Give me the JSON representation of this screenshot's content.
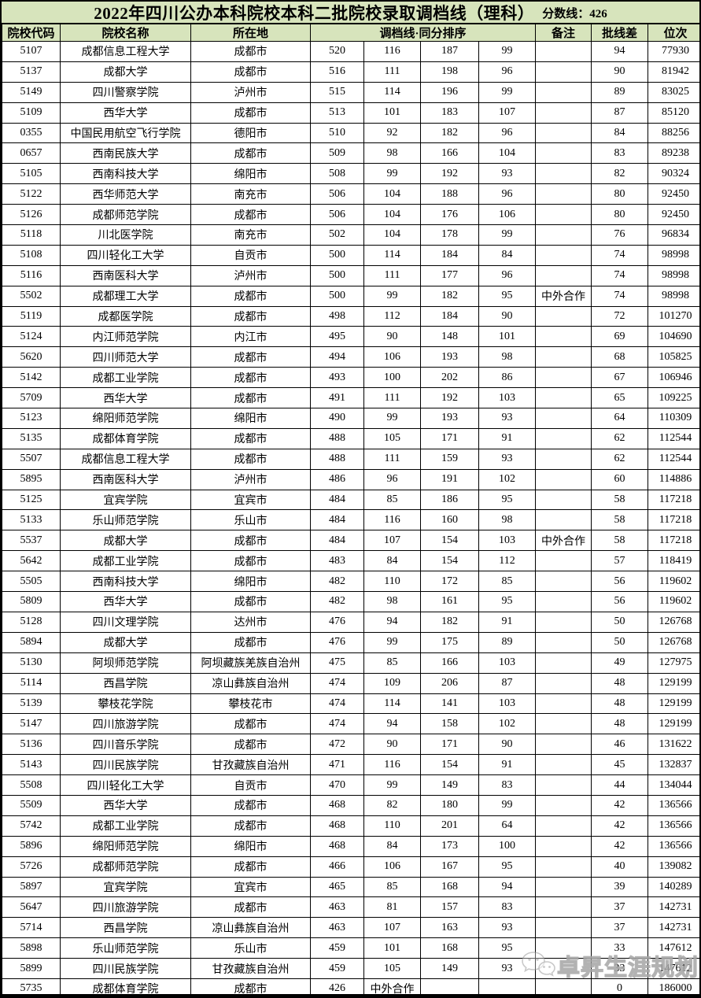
{
  "title": {
    "main": "2022年四川公办本科院校本科二批院校录取调档线（理科）",
    "scoreline": "分数线：426"
  },
  "colors": {
    "header_bg": "#d7e4bc",
    "border": "#000000",
    "row_bg": "#ffffff",
    "watermark_gray": "#a0a0a0"
  },
  "table": {
    "headers": {
      "code": "院校代码",
      "name": "院校名称",
      "city": "所在地",
      "score_group": "调档线·同分排序",
      "remark": "备注",
      "diff": "批线差",
      "rank": "位次"
    },
    "rows": [
      {
        "code": "5107",
        "name": "成都信息工程大学",
        "city": "成都市",
        "c1": "520",
        "c2": "116",
        "c3": "187",
        "c4": "99",
        "remark": "",
        "diff": "94",
        "rank": "77930"
      },
      {
        "code": "5137",
        "name": "成都大学",
        "city": "成都市",
        "c1": "516",
        "c2": "111",
        "c3": "198",
        "c4": "96",
        "remark": "",
        "diff": "90",
        "rank": "81942"
      },
      {
        "code": "5149",
        "name": "四川警察学院",
        "city": "泸州市",
        "c1": "515",
        "c2": "114",
        "c3": "196",
        "c4": "99",
        "remark": "",
        "diff": "89",
        "rank": "83025"
      },
      {
        "code": "5109",
        "name": "西华大学",
        "city": "成都市",
        "c1": "513",
        "c2": "101",
        "c3": "183",
        "c4": "107",
        "remark": "",
        "diff": "87",
        "rank": "85120"
      },
      {
        "code": "0355",
        "name": "中国民用航空飞行学院",
        "city": "德阳市",
        "c1": "510",
        "c2": "92",
        "c3": "182",
        "c4": "96",
        "remark": "",
        "diff": "84",
        "rank": "88256"
      },
      {
        "code": "0657",
        "name": "西南民族大学",
        "city": "成都市",
        "c1": "509",
        "c2": "98",
        "c3": "166",
        "c4": "104",
        "remark": "",
        "diff": "83",
        "rank": "89238"
      },
      {
        "code": "5105",
        "name": "西南科技大学",
        "city": "绵阳市",
        "c1": "508",
        "c2": "99",
        "c3": "192",
        "c4": "93",
        "remark": "",
        "diff": "82",
        "rank": "90324"
      },
      {
        "code": "5122",
        "name": "西华师范大学",
        "city": "南充市",
        "c1": "506",
        "c2": "104",
        "c3": "188",
        "c4": "96",
        "remark": "",
        "diff": "80",
        "rank": "92450"
      },
      {
        "code": "5126",
        "name": "成都师范学院",
        "city": "成都市",
        "c1": "506",
        "c2": "104",
        "c3": "176",
        "c4": "106",
        "remark": "",
        "diff": "80",
        "rank": "92450"
      },
      {
        "code": "5118",
        "name": "川北医学院",
        "city": "南充市",
        "c1": "502",
        "c2": "104",
        "c3": "178",
        "c4": "99",
        "remark": "",
        "diff": "76",
        "rank": "96834"
      },
      {
        "code": "5108",
        "name": "四川轻化工大学",
        "city": "自贡市",
        "c1": "500",
        "c2": "114",
        "c3": "184",
        "c4": "84",
        "remark": "",
        "diff": "74",
        "rank": "98998"
      },
      {
        "code": "5116",
        "name": "西南医科大学",
        "city": "泸州市",
        "c1": "500",
        "c2": "111",
        "c3": "177",
        "c4": "96",
        "remark": "",
        "diff": "74",
        "rank": "98998"
      },
      {
        "code": "5502",
        "name": "成都理工大学",
        "city": "成都市",
        "c1": "500",
        "c2": "99",
        "c3": "182",
        "c4": "95",
        "remark": "中外合作",
        "diff": "74",
        "rank": "98998"
      },
      {
        "code": "5119",
        "name": "成都医学院",
        "city": "成都市",
        "c1": "498",
        "c2": "112",
        "c3": "184",
        "c4": "90",
        "remark": "",
        "diff": "72",
        "rank": "101270"
      },
      {
        "code": "5124",
        "name": "内江师范学院",
        "city": "内江市",
        "c1": "495",
        "c2": "90",
        "c3": "148",
        "c4": "101",
        "remark": "",
        "diff": "69",
        "rank": "104690"
      },
      {
        "code": "5620",
        "name": "四川师范大学",
        "city": "成都市",
        "c1": "494",
        "c2": "106",
        "c3": "193",
        "c4": "98",
        "remark": "",
        "diff": "68",
        "rank": "105825"
      },
      {
        "code": "5142",
        "name": "成都工业学院",
        "city": "成都市",
        "c1": "493",
        "c2": "100",
        "c3": "202",
        "c4": "86",
        "remark": "",
        "diff": "67",
        "rank": "106946"
      },
      {
        "code": "5709",
        "name": "西华大学",
        "city": "成都市",
        "c1": "491",
        "c2": "111",
        "c3": "192",
        "c4": "103",
        "remark": "",
        "diff": "65",
        "rank": "109225"
      },
      {
        "code": "5123",
        "name": "绵阳师范学院",
        "city": "绵阳市",
        "c1": "490",
        "c2": "99",
        "c3": "193",
        "c4": "93",
        "remark": "",
        "diff": "64",
        "rank": "110309"
      },
      {
        "code": "5135",
        "name": "成都体育学院",
        "city": "成都市",
        "c1": "488",
        "c2": "105",
        "c3": "171",
        "c4": "91",
        "remark": "",
        "diff": "62",
        "rank": "112544"
      },
      {
        "code": "5507",
        "name": "成都信息工程大学",
        "city": "成都市",
        "c1": "488",
        "c2": "111",
        "c3": "159",
        "c4": "93",
        "remark": "",
        "diff": "62",
        "rank": "112544"
      },
      {
        "code": "5895",
        "name": "西南医科大学",
        "city": "泸州市",
        "c1": "486",
        "c2": "96",
        "c3": "191",
        "c4": "102",
        "remark": "",
        "diff": "60",
        "rank": "114886"
      },
      {
        "code": "5125",
        "name": "宜宾学院",
        "city": "宜宾市",
        "c1": "484",
        "c2": "85",
        "c3": "186",
        "c4": "95",
        "remark": "",
        "diff": "58",
        "rank": "117218"
      },
      {
        "code": "5133",
        "name": "乐山师范学院",
        "city": "乐山市",
        "c1": "484",
        "c2": "116",
        "c3": "160",
        "c4": "98",
        "remark": "",
        "diff": "58",
        "rank": "117218"
      },
      {
        "code": "5537",
        "name": "成都大学",
        "city": "成都市",
        "c1": "484",
        "c2": "107",
        "c3": "154",
        "c4": "103",
        "remark": "中外合作",
        "diff": "58",
        "rank": "117218"
      },
      {
        "code": "5642",
        "name": "成都工业学院",
        "city": "成都市",
        "c1": "483",
        "c2": "84",
        "c3": "154",
        "c4": "112",
        "remark": "",
        "diff": "57",
        "rank": "118419"
      },
      {
        "code": "5505",
        "name": "西南科技大学",
        "city": "绵阳市",
        "c1": "482",
        "c2": "110",
        "c3": "172",
        "c4": "85",
        "remark": "",
        "diff": "56",
        "rank": "119602"
      },
      {
        "code": "5809",
        "name": "西华大学",
        "city": "成都市",
        "c1": "482",
        "c2": "98",
        "c3": "161",
        "c4": "95",
        "remark": "",
        "diff": "56",
        "rank": "119602"
      },
      {
        "code": "5128",
        "name": "四川文理学院",
        "city": "达州市",
        "c1": "476",
        "c2": "94",
        "c3": "182",
        "c4": "91",
        "remark": "",
        "diff": "50",
        "rank": "126768"
      },
      {
        "code": "5894",
        "name": "成都大学",
        "city": "成都市",
        "c1": "476",
        "c2": "99",
        "c3": "175",
        "c4": "89",
        "remark": "",
        "diff": "50",
        "rank": "126768"
      },
      {
        "code": "5130",
        "name": "阿坝师范学院",
        "city": "阿坝藏族羌族自治州",
        "c1": "475",
        "c2": "85",
        "c3": "166",
        "c4": "103",
        "remark": "",
        "diff": "49",
        "rank": "127975"
      },
      {
        "code": "5114",
        "name": "西昌学院",
        "city": "凉山彝族自治州",
        "c1": "474",
        "c2": "109",
        "c3": "206",
        "c4": "87",
        "remark": "",
        "diff": "48",
        "rank": "129199"
      },
      {
        "code": "5139",
        "name": "攀枝花学院",
        "city": "攀枝花市",
        "c1": "474",
        "c2": "114",
        "c3": "141",
        "c4": "103",
        "remark": "",
        "diff": "48",
        "rank": "129199"
      },
      {
        "code": "5147",
        "name": "四川旅游学院",
        "city": "成都市",
        "c1": "474",
        "c2": "94",
        "c3": "158",
        "c4": "102",
        "remark": "",
        "diff": "48",
        "rank": "129199"
      },
      {
        "code": "5136",
        "name": "四川音乐学院",
        "city": "成都市",
        "c1": "472",
        "c2": "90",
        "c3": "171",
        "c4": "90",
        "remark": "",
        "diff": "46",
        "rank": "131622"
      },
      {
        "code": "5143",
        "name": "四川民族学院",
        "city": "甘孜藏族自治州",
        "c1": "471",
        "c2": "116",
        "c3": "154",
        "c4": "91",
        "remark": "",
        "diff": "45",
        "rank": "132837"
      },
      {
        "code": "5508",
        "name": "四川轻化工大学",
        "city": "自贡市",
        "c1": "470",
        "c2": "99",
        "c3": "149",
        "c4": "83",
        "remark": "",
        "diff": "44",
        "rank": "134044"
      },
      {
        "code": "5509",
        "name": "西华大学",
        "city": "成都市",
        "c1": "468",
        "c2": "82",
        "c3": "180",
        "c4": "99",
        "remark": "",
        "diff": "42",
        "rank": "136566"
      },
      {
        "code": "5742",
        "name": "成都工业学院",
        "city": "成都市",
        "c1": "468",
        "c2": "110",
        "c3": "201",
        "c4": "64",
        "remark": "",
        "diff": "42",
        "rank": "136566"
      },
      {
        "code": "5896",
        "name": "绵阳师范学院",
        "city": "绵阳市",
        "c1": "468",
        "c2": "84",
        "c3": "173",
        "c4": "100",
        "remark": "",
        "diff": "42",
        "rank": "136566"
      },
      {
        "code": "5726",
        "name": "成都师范学院",
        "city": "成都市",
        "c1": "466",
        "c2": "106",
        "c3": "167",
        "c4": "95",
        "remark": "",
        "diff": "40",
        "rank": "139082"
      },
      {
        "code": "5897",
        "name": "宜宾学院",
        "city": "宜宾市",
        "c1": "465",
        "c2": "85",
        "c3": "168",
        "c4": "94",
        "remark": "",
        "diff": "39",
        "rank": "140289"
      },
      {
        "code": "5647",
        "name": "四川旅游学院",
        "city": "成都市",
        "c1": "463",
        "c2": "81",
        "c3": "157",
        "c4": "83",
        "remark": "",
        "diff": "37",
        "rank": "142731"
      },
      {
        "code": "5714",
        "name": "西昌学院",
        "city": "凉山彝族自治州",
        "c1": "463",
        "c2": "107",
        "c3": "163",
        "c4": "93",
        "remark": "",
        "diff": "37",
        "rank": "142731"
      },
      {
        "code": "5898",
        "name": "乐山师范学院",
        "city": "乐山市",
        "c1": "459",
        "c2": "101",
        "c3": "168",
        "c4": "95",
        "remark": "",
        "diff": "33",
        "rank": "147612"
      },
      {
        "code": "5899",
        "name": "四川民族学院",
        "city": "甘孜藏族自治州",
        "c1": "459",
        "c2": "105",
        "c3": "149",
        "c4": "93",
        "remark": "",
        "diff": "33",
        "rank": "147612"
      },
      {
        "code": "5735",
        "name": "成都体育学院",
        "city": "成都市",
        "c1": "426",
        "c2": "中外合作",
        "c3": "",
        "c4": "",
        "remark": "",
        "diff": "0",
        "rank": "186000"
      }
    ]
  },
  "watermark": {
    "text": "卓昇生涯规划",
    "icon": "wechat-chat-bubbles-icon"
  }
}
